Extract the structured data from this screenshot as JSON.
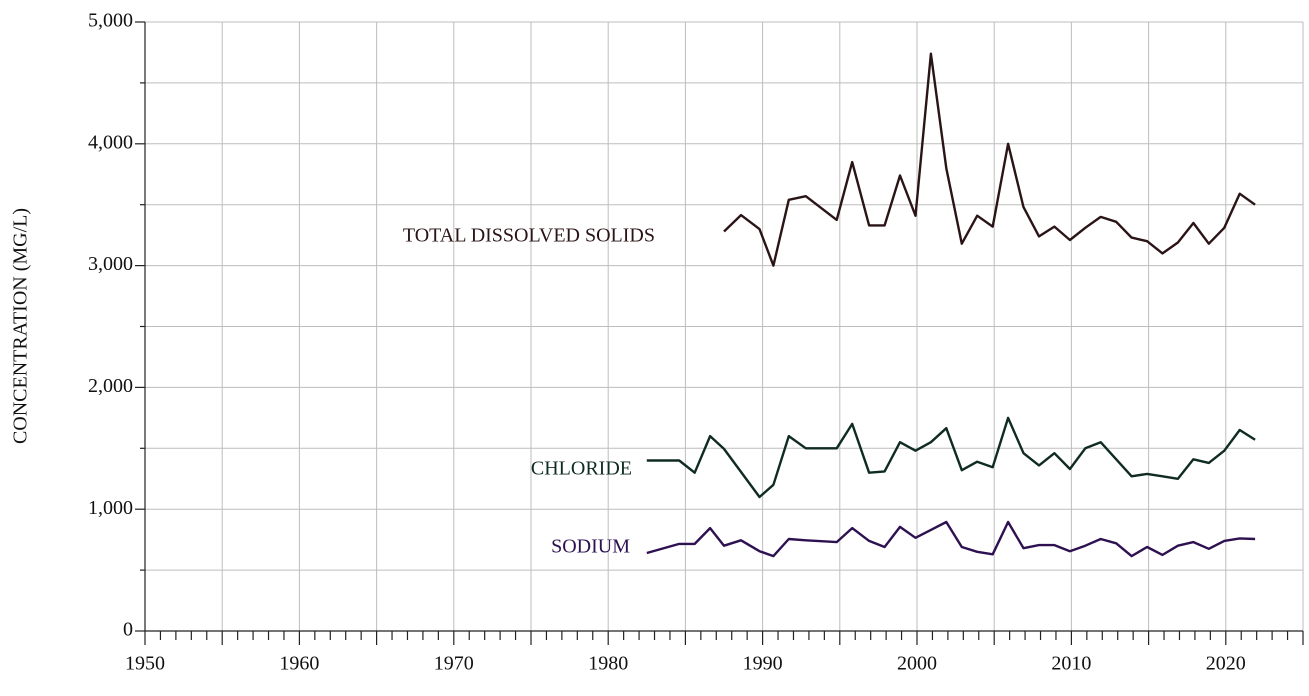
{
  "chart_data": {
    "type": "line",
    "y_label": "CONCENTRATION (MG/L)",
    "xlim": [
      1950,
      2025
    ],
    "xticks": [
      1950,
      1960,
      1970,
      1980,
      1990,
      2000,
      2010,
      2020
    ],
    "ylim": [
      0,
      5000
    ],
    "yticks": [
      0,
      {
        "value": 1000,
        "label": "1,000"
      },
      {
        "value": 2000,
        "label": "2,000"
      },
      {
        "value": 3000,
        "label": "3,000"
      },
      {
        "value": 4000,
        "label": "4,000"
      },
      {
        "value": 5000,
        "label": "5,000"
      }
    ],
    "grid": true,
    "series": [
      {
        "name": "TOTAL DISSOLVED SOLIDS",
        "color": "#2b1416",
        "x": [
          1987.5,
          1988.6,
          1989.8,
          1990.7,
          1991.7,
          1992.8,
          1994.8,
          1995.8,
          1996.9,
          1997.9,
          1998.9,
          1999.9,
          2000.9,
          2001.9,
          2002.9,
          2003.9,
          2004.9,
          2005.9,
          2006.9,
          2007.9,
          2008.9,
          2009.9,
          2010.9,
          2011.9,
          2012.9,
          2013.9,
          2014.9,
          2015.9,
          2016.9,
          2017.9,
          2018.9,
          2019.9,
          2020.9,
          2021.9
        ],
        "values": [
          3280,
          3415,
          3300,
          3000,
          3540,
          3570,
          3375,
          3850,
          3330,
          3330,
          3740,
          3410,
          4740,
          3800,
          3180,
          3410,
          3320,
          4000,
          3480,
          3240,
          3320,
          3210,
          3310,
          3400,
          3360,
          3230,
          3200,
          3100,
          3190,
          3350,
          3180,
          3310,
          3590,
          3500
        ]
      },
      {
        "name": "CHLORIDE",
        "color": "#0f2b22",
        "x": [
          1982.5,
          1984.6,
          1985.6,
          1986.6,
          1987.5,
          1989.8,
          1990.7,
          1991.7,
          1992.8,
          1994.8,
          1995.8,
          1996.9,
          1997.9,
          1998.9,
          1999.9,
          2000.9,
          2001.9,
          2002.9,
          2003.9,
          2004.9,
          2005.9,
          2006.9,
          2007.9,
          2008.9,
          2009.9,
          2010.9,
          2011.9,
          2012.9,
          2013.9,
          2014.9,
          2015.9,
          2016.9,
          2017.9,
          2018.9,
          2019.9,
          2020.9,
          2021.9
        ],
        "values": [
          1400,
          1400,
          1300,
          1600,
          1495,
          1100,
          1200,
          1600,
          1500,
          1500,
          1700,
          1300,
          1310,
          1550,
          1480,
          1550,
          1665,
          1320,
          1390,
          1345,
          1750,
          1460,
          1360,
          1460,
          1330,
          1500,
          1550,
          1410,
          1270,
          1290,
          1270,
          1250,
          1410,
          1380,
          1480,
          1650,
          1570
        ]
      },
      {
        "name": "SODIUM",
        "color": "#2d1150",
        "x": [
          1982.5,
          1984.6,
          1985.6,
          1986.6,
          1987.5,
          1988.6,
          1989.8,
          1990.7,
          1991.7,
          1992.8,
          1994.8,
          1995.8,
          1996.9,
          1997.9,
          1998.9,
          1999.9,
          2000.9,
          2001.9,
          2002.9,
          2003.9,
          2004.9,
          2005.9,
          2006.9,
          2007.9,
          2008.9,
          2009.9,
          2010.9,
          2011.9,
          2012.9,
          2013.9,
          2014.9,
          2015.9,
          2016.9,
          2017.9,
          2018.9,
          2019.9,
          2020.9,
          2021.9
        ],
        "values": [
          640,
          715,
          715,
          845,
          700,
          745,
          655,
          615,
          755,
          745,
          730,
          845,
          740,
          690,
          855,
          765,
          830,
          895,
          690,
          650,
          630,
          895,
          680,
          705,
          705,
          655,
          700,
          755,
          720,
          615,
          690,
          625,
          700,
          730,
          675,
          740,
          760,
          755
        ]
      }
    ]
  }
}
